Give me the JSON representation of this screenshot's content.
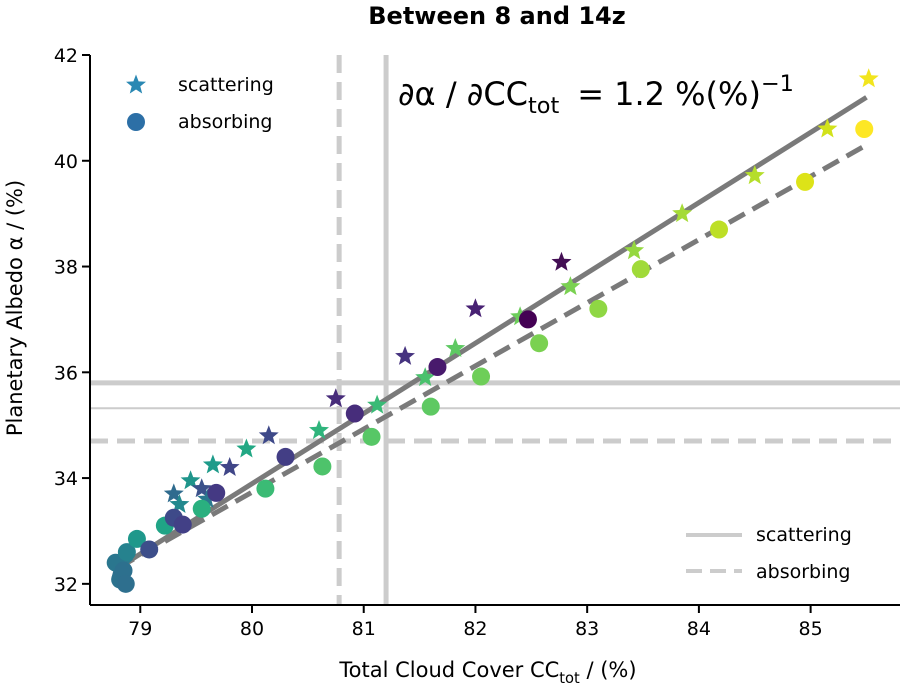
{
  "chart_data": {
    "type": "scatter",
    "title": "Between 8 and 14z",
    "xlabel_main": "Total Cloud Cover CC",
    "xlabel_sub": "tot",
    "xlabel_unit": " / (%)",
    "ylabel": "Planetary Albedo α / (%)",
    "xlim": [
      78.55,
      85.8
    ],
    "ylim": [
      31.6,
      42.0
    ],
    "xticks": [
      79,
      80,
      81,
      82,
      83,
      84,
      85
    ],
    "yticks": [
      32,
      34,
      36,
      38,
      40,
      42
    ],
    "annotation": {
      "lhs_main": "∂α / ∂CC",
      "lhs_sub": "tot",
      "equals": "=",
      "rhs_main": "1.2 %(%)",
      "rhs_sup": "−1"
    },
    "marker_legend": [
      {
        "label": "scattering",
        "marker": "star",
        "color": "#2a88b3"
      },
      {
        "label": "absorbing",
        "marker": "circle",
        "color": "#2c6fa6"
      }
    ],
    "line_legend": [
      {
        "label": "scattering",
        "style": "solid",
        "color": "#cccccc"
      },
      {
        "label": "absorbing",
        "style": "dashed",
        "color": "#cccccc"
      }
    ],
    "reference_lines": {
      "vertical_scattering": 81.2,
      "vertical_absorbing": 80.78,
      "horizontal_scattering": 35.8,
      "horizontal_absorbing": 34.7,
      "horizontal_thin": 35.32
    },
    "fits": [
      {
        "name": "scattering",
        "style": "solid",
        "color": "#7a7a7a",
        "x": [
          78.8,
          85.5
        ],
        "y": [
          32.3,
          41.2
        ]
      },
      {
        "name": "absorbing",
        "style": "dashed",
        "color": "#7a7a7a",
        "x": [
          78.8,
          85.5
        ],
        "y": [
          32.3,
          40.3
        ]
      }
    ],
    "series": [
      {
        "name": "scattering",
        "marker": "star",
        "points": [
          {
            "x": 78.8,
            "y": 32.3,
            "c": "#2e6e8e"
          },
          {
            "x": 78.85,
            "y": 32.4,
            "c": "#2c7a8e"
          },
          {
            "x": 79.3,
            "y": 33.7,
            "c": "#2f6b8e"
          },
          {
            "x": 79.35,
            "y": 33.5,
            "c": "#23898e"
          },
          {
            "x": 79.45,
            "y": 33.95,
            "c": "#1f958b"
          },
          {
            "x": 79.55,
            "y": 33.8,
            "c": "#3b528b"
          },
          {
            "x": 79.6,
            "y": 33.6,
            "c": "#2a788e"
          },
          {
            "x": 79.65,
            "y": 34.25,
            "c": "#1e9b8a"
          },
          {
            "x": 79.8,
            "y": 34.2,
            "c": "#404688"
          },
          {
            "x": 79.95,
            "y": 34.55,
            "c": "#22a884"
          },
          {
            "x": 80.15,
            "y": 34.8,
            "c": "#3e4989"
          },
          {
            "x": 80.6,
            "y": 34.9,
            "c": "#2fb47c"
          },
          {
            "x": 80.75,
            "y": 35.5,
            "c": "#472c7a"
          },
          {
            "x": 81.12,
            "y": 35.38,
            "c": "#3aba76"
          },
          {
            "x": 81.37,
            "y": 36.3,
            "c": "#46337f"
          },
          {
            "x": 81.55,
            "y": 35.9,
            "c": "#4ac16d"
          },
          {
            "x": 81.82,
            "y": 36.45,
            "c": "#5ec962"
          },
          {
            "x": 82.0,
            "y": 37.2,
            "c": "#482173"
          },
          {
            "x": 82.4,
            "y": 37.05,
            "c": "#6ccd5a"
          },
          {
            "x": 82.77,
            "y": 38.08,
            "c": "#440f55"
          },
          {
            "x": 82.85,
            "y": 37.62,
            "c": "#7ad151"
          },
          {
            "x": 83.42,
            "y": 38.3,
            "c": "#95d840"
          },
          {
            "x": 83.85,
            "y": 39.0,
            "c": "#a5db36"
          },
          {
            "x": 84.5,
            "y": 39.72,
            "c": "#b5de2b"
          },
          {
            "x": 85.15,
            "y": 40.6,
            "c": "#d2e21b"
          },
          {
            "x": 85.52,
            "y": 41.55,
            "c": "#f2e51d"
          }
        ]
      },
      {
        "name": "absorbing",
        "marker": "circle",
        "points": [
          {
            "x": 78.78,
            "y": 32.4,
            "c": "#2a768e"
          },
          {
            "x": 78.82,
            "y": 32.08,
            "c": "#2c728e"
          },
          {
            "x": 78.85,
            "y": 32.25,
            "c": "#2d708e"
          },
          {
            "x": 78.87,
            "y": 32.0,
            "c": "#2e6f8e"
          },
          {
            "x": 78.88,
            "y": 32.6,
            "c": "#26828e"
          },
          {
            "x": 78.97,
            "y": 32.85,
            "c": "#1f988b"
          },
          {
            "x": 79.08,
            "y": 32.65,
            "c": "#3d4e8a"
          },
          {
            "x": 79.22,
            "y": 33.1,
            "c": "#20a486"
          },
          {
            "x": 79.3,
            "y": 33.25,
            "c": "#3e4a89"
          },
          {
            "x": 79.38,
            "y": 33.12,
            "c": "#424086"
          },
          {
            "x": 79.55,
            "y": 33.42,
            "c": "#2ab07f"
          },
          {
            "x": 79.68,
            "y": 33.72,
            "c": "#443983"
          },
          {
            "x": 80.12,
            "y": 33.8,
            "c": "#3bbb75"
          },
          {
            "x": 80.3,
            "y": 34.4,
            "c": "#433e85"
          },
          {
            "x": 80.63,
            "y": 34.22,
            "c": "#4ec36b"
          },
          {
            "x": 80.92,
            "y": 35.22,
            "c": "#472d7b"
          },
          {
            "x": 81.07,
            "y": 34.78,
            "c": "#57c766"
          },
          {
            "x": 81.6,
            "y": 35.35,
            "c": "#5ec962"
          },
          {
            "x": 81.66,
            "y": 36.1,
            "c": "#481a6c"
          },
          {
            "x": 82.05,
            "y": 35.92,
            "c": "#6ece58"
          },
          {
            "x": 82.47,
            "y": 37.0,
            "c": "#440154"
          },
          {
            "x": 82.57,
            "y": 36.55,
            "c": "#7ad151"
          },
          {
            "x": 83.1,
            "y": 37.2,
            "c": "#8fd744"
          },
          {
            "x": 83.48,
            "y": 37.95,
            "c": "#a0da39"
          },
          {
            "x": 84.18,
            "y": 38.7,
            "c": "#bddf26"
          },
          {
            "x": 84.95,
            "y": 39.6,
            "c": "#dde318"
          },
          {
            "x": 85.48,
            "y": 40.6,
            "c": "#fde725"
          }
        ]
      }
    ]
  }
}
